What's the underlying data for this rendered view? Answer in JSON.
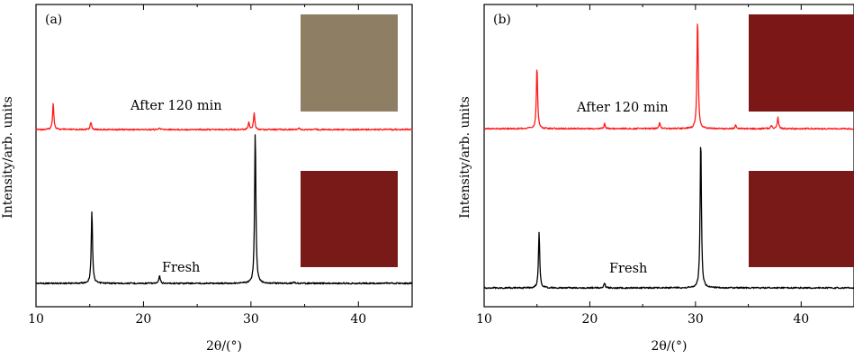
{
  "chart_data": [
    {
      "type": "line",
      "panel_label": "(a)",
      "xlabel": "2θ/(°)",
      "ylabel": "Intensity/arb. units",
      "xlim": [
        10,
        45
      ],
      "x_ticks": [
        10,
        20,
        30,
        40
      ],
      "y_ticks": [],
      "grid": false,
      "series": [
        {
          "label": "After 120 min",
          "color": "#ff1a1a",
          "baseline": 1.0,
          "peaks": [
            {
              "x": 11.6,
              "height": 0.17
            },
            {
              "x": 15.1,
              "height": 0.05
            },
            {
              "x": 21.5,
              "height": 0.01
            },
            {
              "x": 29.8,
              "height": 0.05
            },
            {
              "x": 30.3,
              "height": 0.11
            },
            {
              "x": 34.5,
              "height": 0.01
            }
          ]
        },
        {
          "label": "Fresh",
          "color": "#000000",
          "baseline": 0.0,
          "peaks": [
            {
              "x": 15.2,
              "height": 0.47
            },
            {
              "x": 21.5,
              "height": 0.05
            },
            {
              "x": 30.4,
              "height": 0.98
            },
            {
              "x": 34.0,
              "height": 0.01
            }
          ]
        }
      ],
      "inset_colors": {
        "after": "#8e7f64",
        "fresh": "#7a1a18"
      }
    },
    {
      "type": "line",
      "panel_label": "(b)",
      "xlabel": "2θ/(°)",
      "ylabel": "Intensity/arb. units",
      "xlim": [
        10,
        45
      ],
      "x_ticks": [
        10,
        20,
        30,
        40
      ],
      "y_ticks": [],
      "grid": false,
      "series": [
        {
          "label": "After 120 min",
          "color": "#ff1a1a",
          "baseline": 1.0,
          "peaks": [
            {
              "x": 15.0,
              "height": 0.38
            },
            {
              "x": 21.4,
              "height": 0.03
            },
            {
              "x": 26.6,
              "height": 0.04
            },
            {
              "x": 30.2,
              "height": 0.68
            },
            {
              "x": 33.8,
              "height": 0.02
            },
            {
              "x": 37.2,
              "height": 0.02
            },
            {
              "x": 37.8,
              "height": 0.07
            }
          ]
        },
        {
          "label": "Fresh",
          "color": "#000000",
          "baseline": 0.0,
          "peaks": [
            {
              "x": 15.2,
              "height": 0.34
            },
            {
              "x": 21.4,
              "height": 0.03
            },
            {
              "x": 30.5,
              "height": 0.92
            }
          ]
        }
      ],
      "inset_colors": {
        "after": "#7c1717",
        "fresh": "#7a1a18"
      }
    }
  ]
}
